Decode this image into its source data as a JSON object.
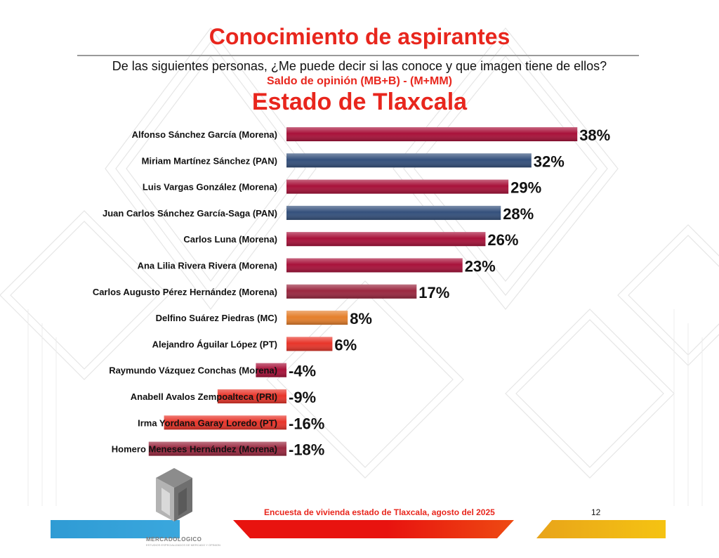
{
  "header": {
    "title": "Conocimiento de aspirantes",
    "question": "De las siguientes personas, ¿Me puede decir si las conoce y que imagen tiene de ellos?",
    "subtitle": "Saldo de opinión (MB+B) - (M+MM)",
    "state": "Estado de  Tlaxcala"
  },
  "chart_data": {
    "type": "bar",
    "orientation": "horizontal",
    "title": "Estado de  Tlaxcala",
    "categories": [
      "Alfonso Sánchez García (Morena)",
      "Miriam Martínez Sánchez (PAN)",
      "Luis Vargas González (Morena)",
      "Juan Carlos Sánchez García-Saga (PAN)",
      "Carlos Luna (Morena)",
      "Ana Lilia Rivera Rivera (Morena)",
      "Carlos Augusto Pérez Hernández (Morena)",
      "Delfino Suárez Piedras (MC)",
      "Alejandro Águilar López (PT)",
      "Raymundo Vázquez Conchas (Morena)",
      "Anabell Avalos Zempoalteca (PRI)",
      "Irma Yordana Garay Loredo (PT)",
      "Homero Meneses Hernández (Morena)"
    ],
    "values": [
      38,
      32,
      29,
      28,
      26,
      23,
      17,
      8,
      6,
      -4,
      -9,
      -16,
      -18
    ],
    "value_labels": [
      "38%",
      "32%",
      "29%",
      "28%",
      "26%",
      "23%",
      "17%",
      "8%",
      "6%",
      "-4%",
      "-9%",
      "-16%",
      "-18%"
    ],
    "colors": [
      "#a8123a",
      "#34507c",
      "#a8123a",
      "#34507c",
      "#a8123a",
      "#a8123a",
      "#9a2840",
      "#e57f2c",
      "#e8352a",
      "#a8123a",
      "#e8352a",
      "#e8352a",
      "#9a2840"
    ],
    "xlabel": "",
    "ylabel": "",
    "grid": false,
    "legend": "none"
  },
  "footer": {
    "survey": "Encuesta de vivienda estado de Tlaxcala, agosto del 2025",
    "page": "12",
    "brand": "MERCADOLOGICO",
    "brand_sub": "ESTUDIOS ESPECIALIZADOS DE MERCADO Y OPINION"
  }
}
